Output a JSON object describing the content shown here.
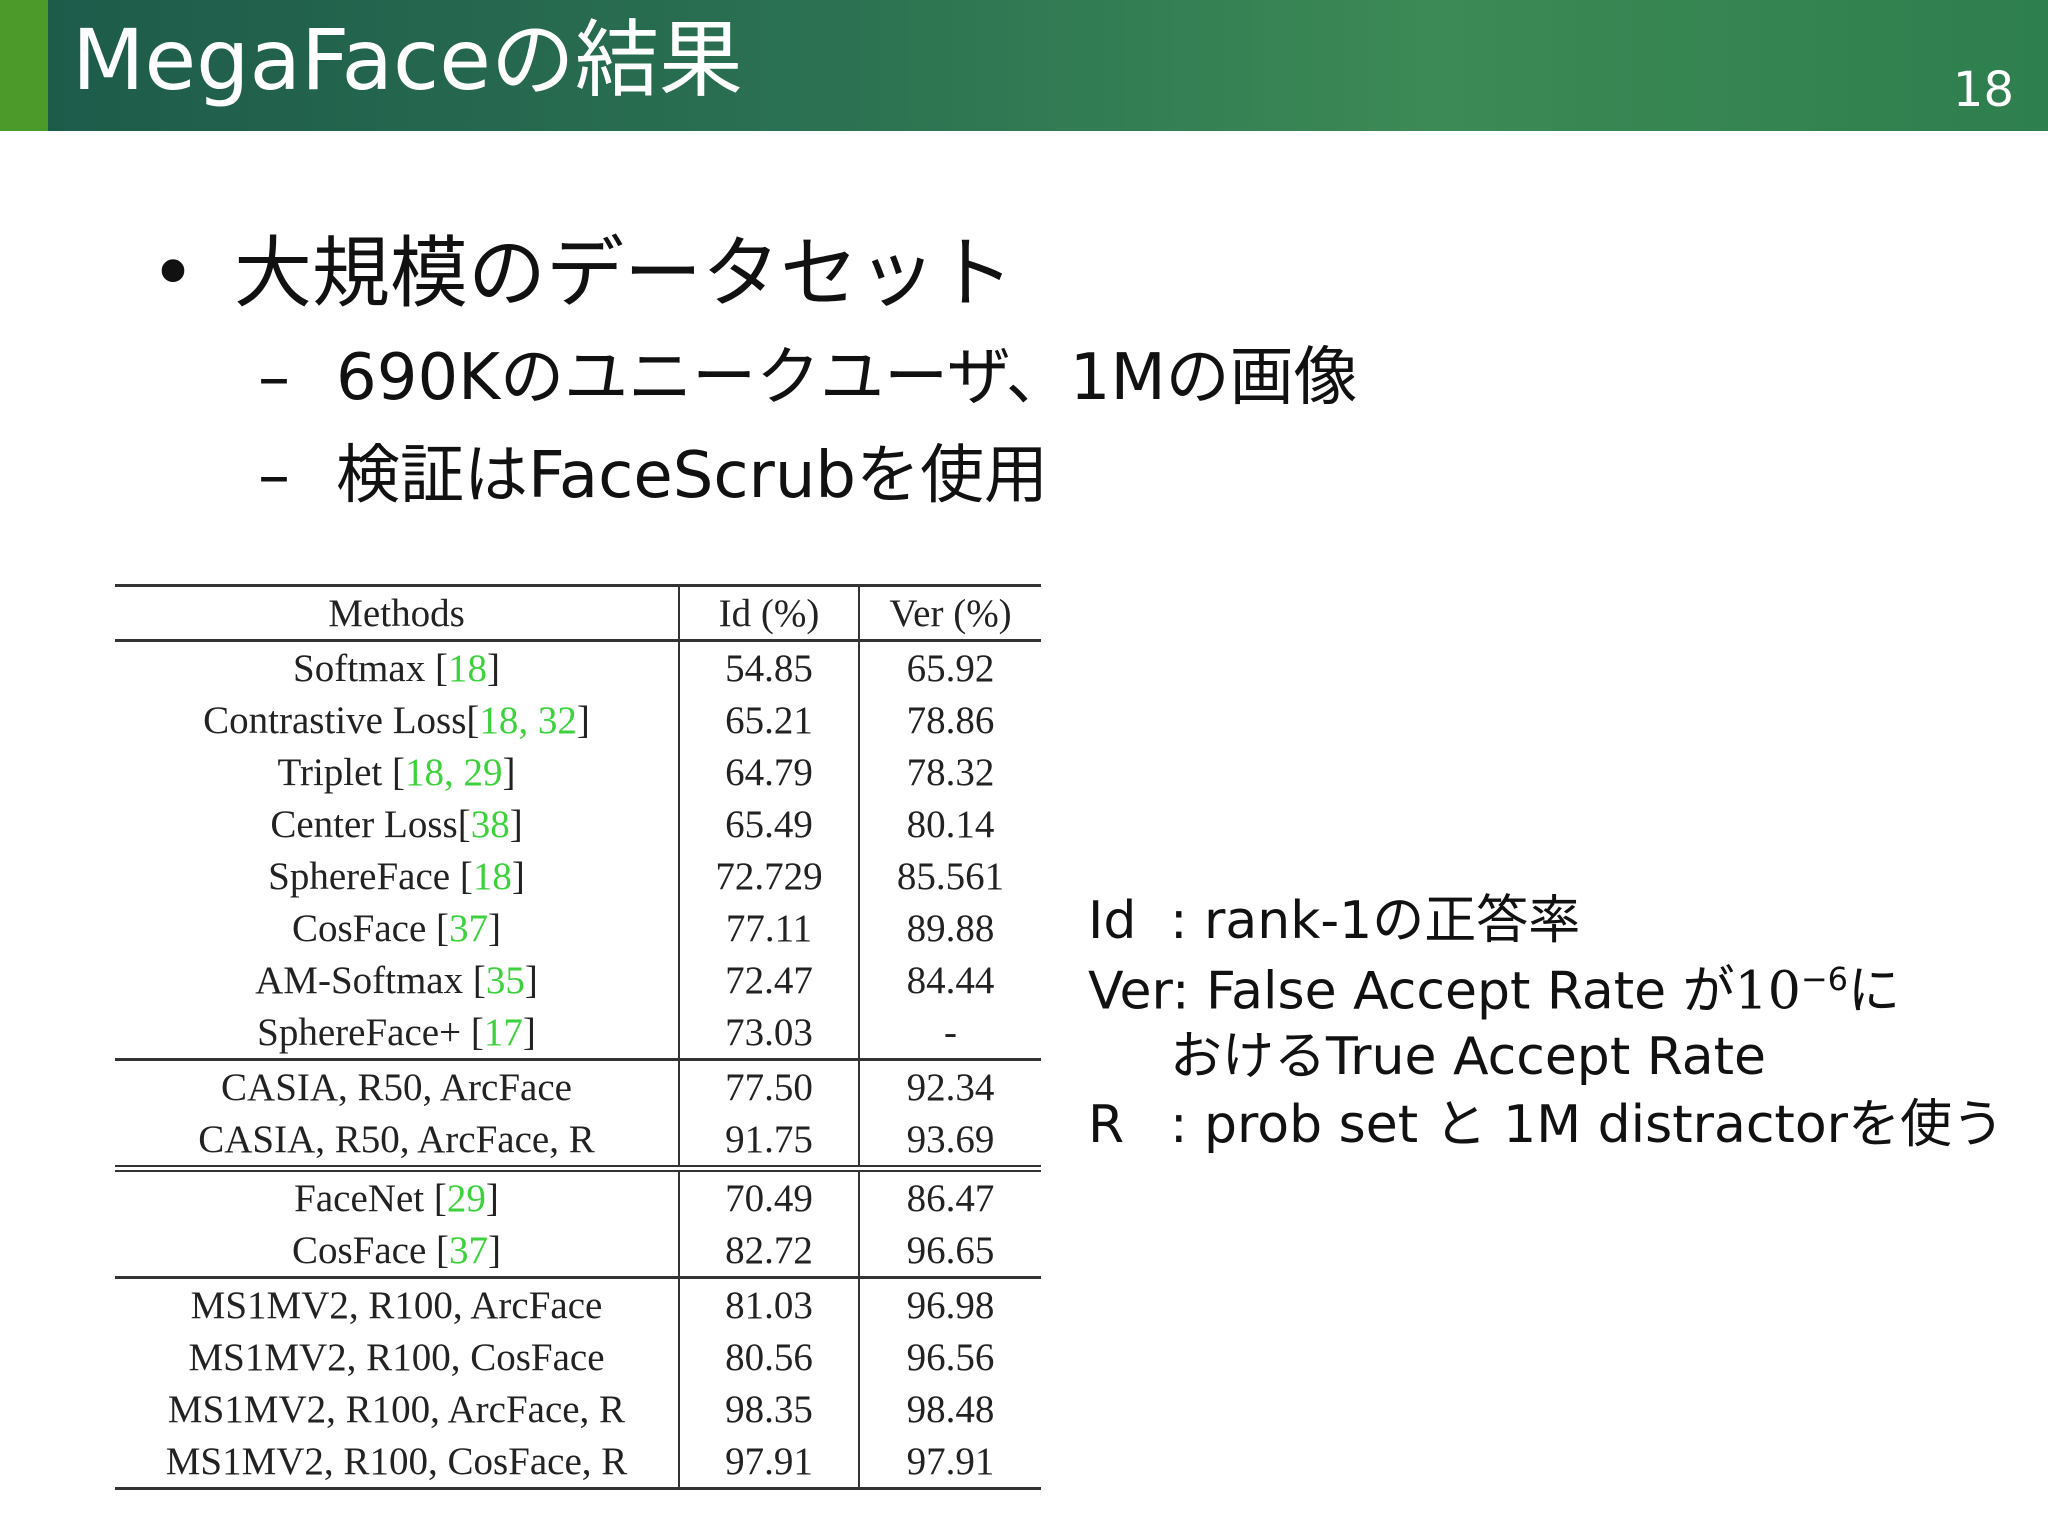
{
  "header": {
    "title": "MegaFaceの結果",
    "page_number": "18"
  },
  "bullets": [
    {
      "text": "大規模のデータセット",
      "children": [
        "690Kのユニークユーザ、1Mの画像",
        "検証はFaceScrubを使用"
      ]
    }
  ],
  "table": {
    "columns": [
      "Methods",
      "Id (%)",
      "Ver (%)"
    ],
    "groups": [
      [
        {
          "method": [
            "Softmax [",
            "18",
            "]"
          ],
          "id": "54.85",
          "ver": "65.92"
        },
        {
          "method": [
            "Contrastive Loss[",
            "18, 32",
            "]"
          ],
          "id": "65.21",
          "ver": "78.86"
        },
        {
          "method": [
            "Triplet [",
            "18, 29",
            "]"
          ],
          "id": "64.79",
          "ver": "78.32"
        },
        {
          "method": [
            "Center Loss[",
            "38",
            "]"
          ],
          "id": "65.49",
          "ver": "80.14"
        },
        {
          "method": [
            "SphereFace [",
            "18",
            "]"
          ],
          "id": "72.729",
          "ver": "85.561"
        },
        {
          "method": [
            "CosFace [",
            "37",
            "]"
          ],
          "id": "77.11",
          "ver": "89.88"
        },
        {
          "method": [
            "AM-Softmax [",
            "35",
            "]"
          ],
          "id": "72.47",
          "ver": "84.44"
        },
        {
          "method": [
            "SphereFace+ [",
            "17",
            "]"
          ],
          "id": "73.03",
          "ver": "-"
        }
      ],
      [
        {
          "method": [
            "CASIA, R50, ArcFace"
          ],
          "id": "77.50",
          "ver": "92.34"
        },
        {
          "method": [
            "CASIA, R50, ArcFace, R"
          ],
          "id": "91.75",
          "ver": "93.69"
        }
      ],
      [
        {
          "method": [
            "FaceNet [",
            "29",
            "]"
          ],
          "id": "70.49",
          "ver": "86.47"
        },
        {
          "method": [
            "CosFace [",
            "37",
            "]"
          ],
          "id": "82.72",
          "ver": "96.65"
        }
      ],
      [
        {
          "method": [
            "MS1MV2, R100, ArcFace"
          ],
          "id": "81.03",
          "ver": "96.98"
        },
        {
          "method": [
            "MS1MV2, R100, CosFace"
          ],
          "id": "80.56",
          "ver": "96.56"
        },
        {
          "method": [
            "MS1MV2, R100, ArcFace, R"
          ],
          "id": "98.35",
          "ver": "98.48"
        },
        {
          "method": [
            "MS1MV2, R100, CosFace, R"
          ],
          "id": "97.91",
          "ver": "97.91"
        }
      ]
    ]
  },
  "notes": {
    "id": {
      "label": "Id",
      "text": ": rank-1の正答率"
    },
    "ver": {
      "label": "Ver:",
      "before": "False Accept Rate が",
      "base": "10",
      "exponent": "−6",
      "after": "に",
      "continuation": "おけるTrue Accept Rate"
    },
    "r": {
      "label": "R",
      "text": ": prob set と 1M distractorを使う"
    }
  }
}
